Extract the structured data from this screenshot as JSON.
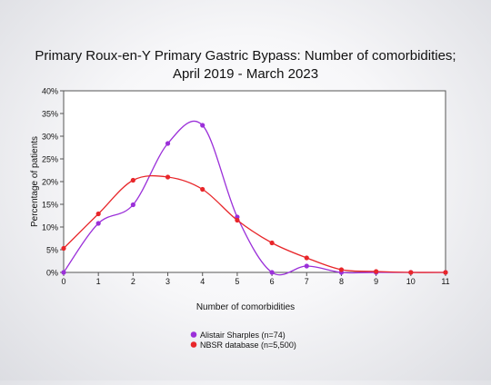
{
  "chart_data": {
    "type": "line",
    "title_line1": "Primary Roux-en-Y Primary Gastric Bypass: Number of comorbidities;",
    "title_line2": "April 2019 - March 2023",
    "xlabel": "Number of comorbidities",
    "ylabel": "Percentage of patients",
    "x": [
      0,
      1,
      2,
      3,
      4,
      5,
      6,
      7,
      8,
      9,
      10,
      11
    ],
    "xlim": [
      0,
      11
    ],
    "ylim": [
      0,
      40
    ],
    "yticks": [
      0,
      5,
      10,
      15,
      20,
      25,
      30,
      35,
      40
    ],
    "ytick_labels": [
      "0%",
      "5%",
      "10%",
      "15%",
      "20%",
      "25%",
      "30%",
      "35%",
      "40%"
    ],
    "xtick_labels": [
      "0",
      "1",
      "2",
      "3",
      "4",
      "5",
      "6",
      "7",
      "8",
      "9",
      "10",
      "11"
    ],
    "grid": false,
    "legend_position": "bottom",
    "series": [
      {
        "name": "Alistair Sharples (n=74)",
        "color": "#9b30d9",
        "values": [
          0.0,
          10.8,
          14.9,
          28.4,
          32.4,
          12.2,
          0.0,
          1.4,
          0.0,
          0.0,
          0.0,
          0.0
        ]
      },
      {
        "name": "NBSR database (n=5,500)",
        "color": "#e8262a",
        "values": [
          5.3,
          12.9,
          20.3,
          21.0,
          18.3,
          11.5,
          6.5,
          3.2,
          0.6,
          0.2,
          0.0,
          0.0
        ]
      }
    ]
  }
}
